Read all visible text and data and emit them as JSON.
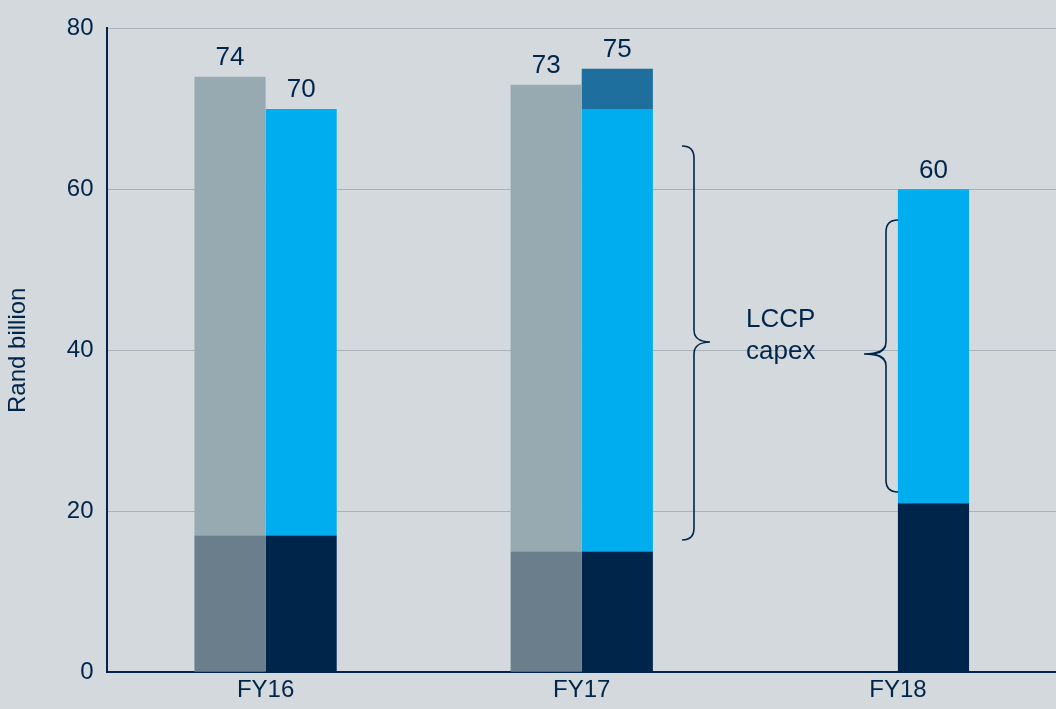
{
  "chart_data": {
    "type": "bar",
    "ylabel": "Rand billion",
    "categories": [
      "FY16",
      "FY17",
      "FY18"
    ],
    "series": [
      {
        "color": "#6a7f8b",
        "values": [
          17,
          15,
          null
        ],
        "base": [
          0,
          0,
          null
        ]
      },
      {
        "color": "#97a9b1",
        "values": [
          57,
          58,
          null
        ],
        "base": [
          17,
          15,
          null
        ]
      },
      {
        "color": "#00254a",
        "values": [
          17,
          15,
          21
        ],
        "base": [
          0,
          0,
          0
        ]
      },
      {
        "color": "#00aeef",
        "values": [
          53,
          55,
          39
        ],
        "base": [
          17,
          15,
          21
        ]
      },
      {
        "color": "#1f6f9e",
        "values": [
          null,
          5,
          null
        ],
        "base": [
          null,
          70,
          null
        ]
      }
    ],
    "totals": [
      [
        "74",
        "70"
      ],
      [
        "73",
        "75"
      ],
      [
        null,
        "60"
      ]
    ],
    "ylim": [
      0,
      80
    ],
    "yticks": [
      0,
      20,
      40,
      60,
      80
    ],
    "grid": "y",
    "annotations": [
      "LCCP capex"
    ]
  }
}
